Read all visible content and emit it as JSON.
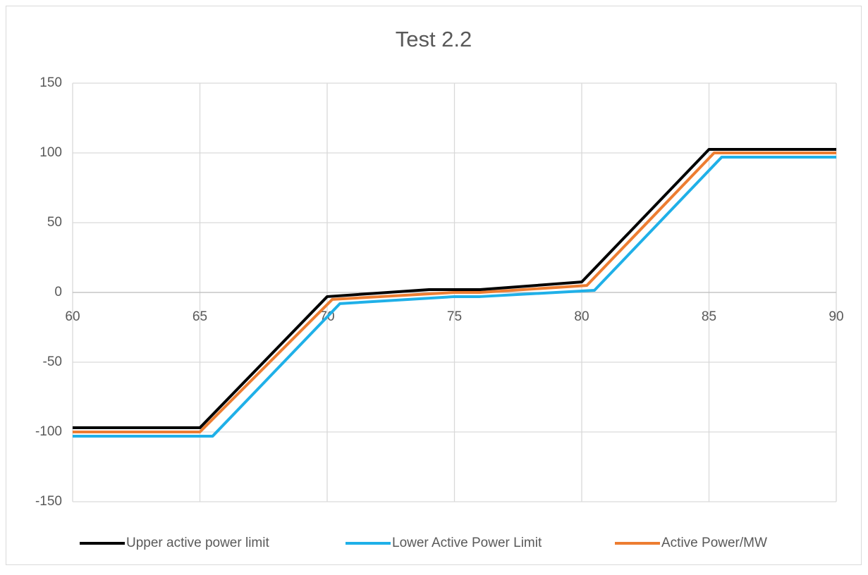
{
  "chart_data": {
    "type": "line",
    "title": "Test 2.2",
    "xlim": [
      60,
      90
    ],
    "xticks": [
      60,
      65,
      70,
      75,
      80,
      85,
      90
    ],
    "ylim": [
      -150,
      150
    ],
    "yticks": [
      -150,
      -100,
      -50,
      0,
      50,
      100,
      150
    ],
    "grid": true,
    "legend": "bottom",
    "series": [
      {
        "name": "Upper active power limit",
        "color": "#000000",
        "x": [
          60,
          65,
          70,
          74,
          76,
          80,
          85,
          90
        ],
        "values": [
          -97,
          -97,
          -3,
          2,
          2,
          7.5,
          102.5,
          102.5
        ]
      },
      {
        "name": "Lower Active Power Limit",
        "color": "#1fb0e8",
        "x": [
          60,
          65.5,
          70.5,
          75,
          76,
          80.5,
          85.5,
          90
        ],
        "values": [
          -103,
          -103,
          -8,
          -3,
          -3,
          1.5,
          97,
          97
        ]
      },
      {
        "name": "Active Power/MW",
        "color": "#ed7d31",
        "x": [
          60,
          65,
          70.2,
          75,
          76,
          80.2,
          85.2,
          90
        ],
        "values": [
          -100,
          -100,
          -5,
          0,
          0,
          5,
          100,
          100
        ]
      }
    ]
  }
}
